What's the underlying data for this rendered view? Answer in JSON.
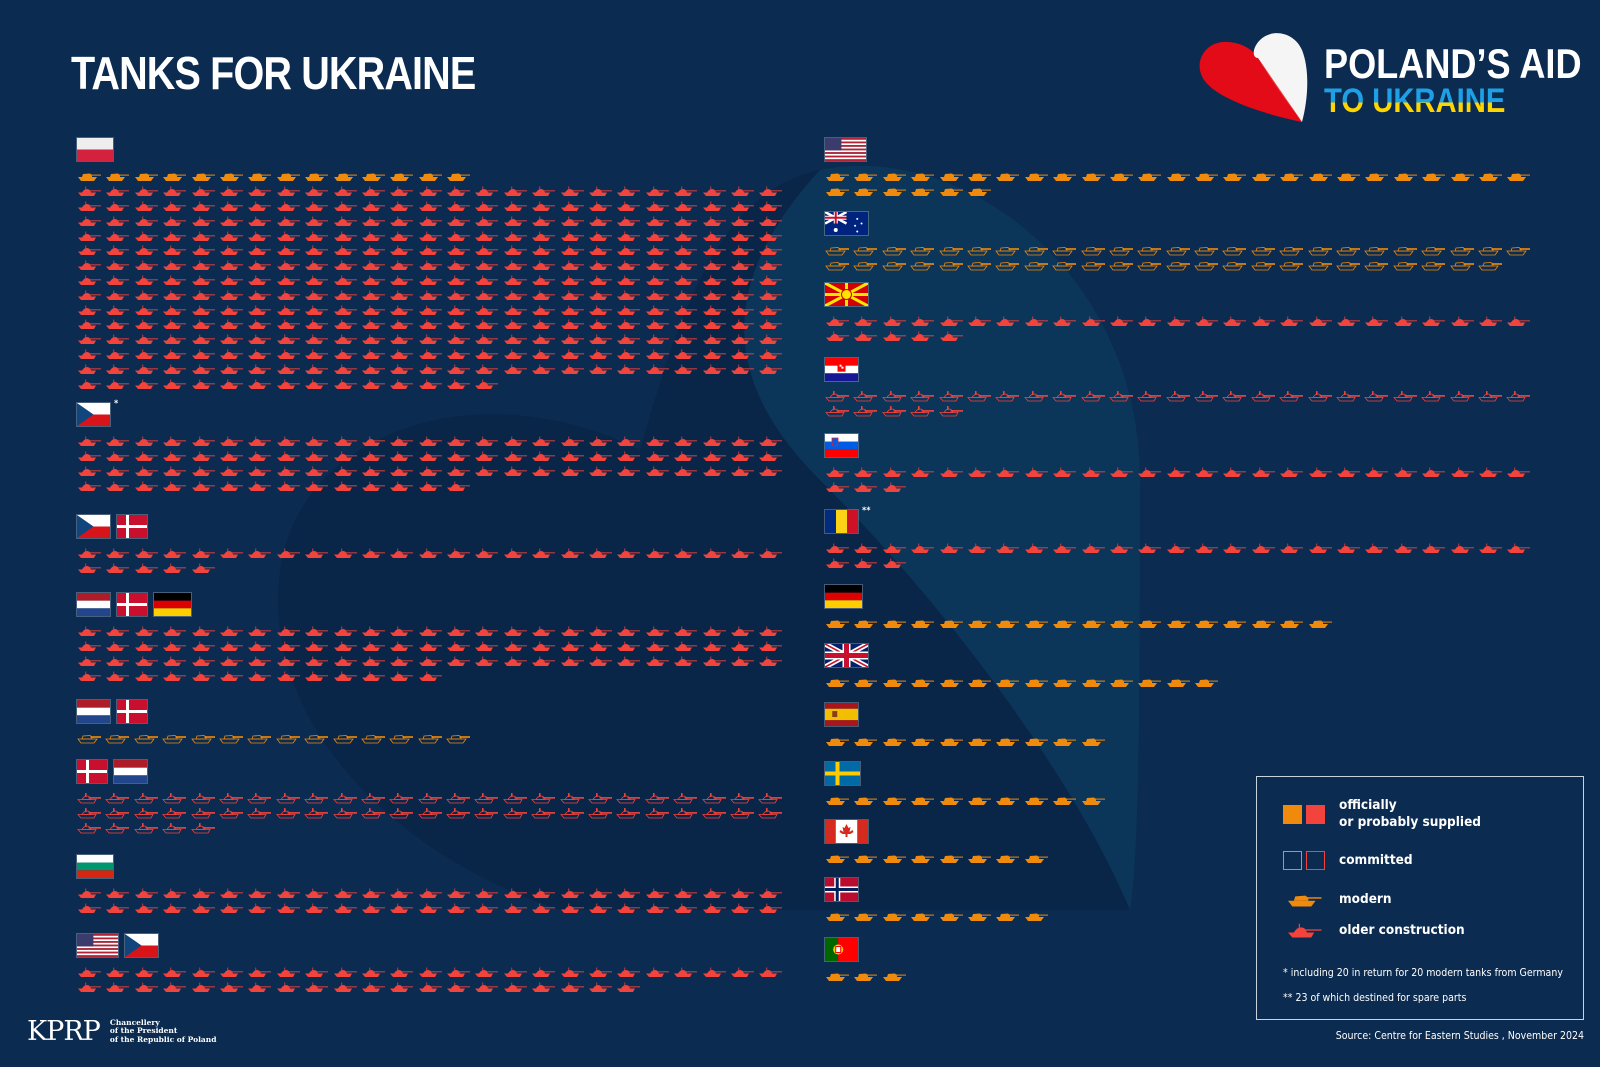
{
  "title": "TANKS FOR UKRAINE",
  "logo": {
    "line1": "POLAND’S AID",
    "line2": "TO UKRAINE"
  },
  "colors": {
    "background": "#0b2b50",
    "modern": "#f08a0c",
    "older": "#f2433d",
    "legend_border": "#c9d3de"
  },
  "groups_left": [
    {
      "flags": [
        "pl"
      ],
      "note": "",
      "tanks": [
        {
          "kind": "modern",
          "status": "supplied",
          "count": 14
        },
        {
          "kind": "older",
          "status": "supplied",
          "count": 340
        }
      ]
    },
    {
      "flags": [
        "cz"
      ],
      "note": "*",
      "tanks": [
        {
          "kind": "older",
          "status": "supplied",
          "count": 89
        }
      ]
    },
    {
      "flags": [
        "cz",
        "dk"
      ],
      "note": "",
      "tanks": [
        {
          "kind": "older",
          "status": "supplied",
          "count": 30
        }
      ]
    },
    {
      "flags": [
        "nl",
        "dk",
        "de"
      ],
      "note": "",
      "tanks": [
        {
          "kind": "older",
          "status": "supplied",
          "count": 88
        }
      ]
    },
    {
      "flags": [
        "nl",
        "dk"
      ],
      "note": "",
      "tanks": [
        {
          "kind": "modern",
          "status": "committed",
          "count": 14
        }
      ]
    },
    {
      "flags": [
        "dk",
        "nl"
      ],
      "note": "",
      "tanks": [
        {
          "kind": "older",
          "status": "committed",
          "count": 55
        }
      ]
    },
    {
      "flags": [
        "bg"
      ],
      "note": "",
      "tanks": [
        {
          "kind": "older",
          "status": "supplied",
          "count": 50
        }
      ]
    },
    {
      "flags": [
        "us",
        "cz"
      ],
      "note": "",
      "tanks": [
        {
          "kind": "older",
          "status": "supplied",
          "count": 45
        }
      ]
    }
  ],
  "groups_right": [
    {
      "flags": [
        "us"
      ],
      "note": "",
      "tanks": [
        {
          "kind": "modern",
          "status": "supplied",
          "count": 31
        }
      ]
    },
    {
      "flags": [
        "au"
      ],
      "note": "",
      "tanks": [
        {
          "kind": "modern",
          "status": "committed",
          "count": 49
        }
      ]
    },
    {
      "flags": [
        "mk"
      ],
      "note": "",
      "tanks": [
        {
          "kind": "older",
          "status": "supplied",
          "count": 30
        }
      ]
    },
    {
      "flags": [
        "hr"
      ],
      "note": "",
      "tanks": [
        {
          "kind": "older",
          "status": "committed",
          "count": 30
        }
      ]
    },
    {
      "flags": [
        "si"
      ],
      "note": "",
      "tanks": [
        {
          "kind": "older",
          "status": "supplied",
          "count": 28
        }
      ]
    },
    {
      "flags": [
        "ro"
      ],
      "note": "**",
      "tanks": [
        {
          "kind": "older",
          "status": "supplied",
          "count": 28
        }
      ]
    },
    {
      "flags": [
        "de"
      ],
      "note": "",
      "tanks": [
        {
          "kind": "modern",
          "status": "supplied",
          "count": 18
        }
      ]
    },
    {
      "flags": [
        "gb"
      ],
      "note": "",
      "tanks": [
        {
          "kind": "modern",
          "status": "supplied",
          "count": 14
        }
      ]
    },
    {
      "flags": [
        "es"
      ],
      "note": "",
      "tanks": [
        {
          "kind": "modern",
          "status": "supplied",
          "count": 10
        }
      ]
    },
    {
      "flags": [
        "se"
      ],
      "note": "",
      "tanks": [
        {
          "kind": "modern",
          "status": "supplied",
          "count": 10
        }
      ]
    },
    {
      "flags": [
        "ca"
      ],
      "note": "",
      "tanks": [
        {
          "kind": "modern",
          "status": "supplied",
          "count": 8
        }
      ]
    },
    {
      "flags": [
        "no"
      ],
      "note": "",
      "tanks": [
        {
          "kind": "modern",
          "status": "supplied",
          "count": 8
        }
      ]
    },
    {
      "flags": [
        "pt"
      ],
      "note": "",
      "tanks": [
        {
          "kind": "modern",
          "status": "supplied",
          "count": 3
        }
      ]
    }
  ],
  "legend": {
    "supplied_line1": "officially",
    "supplied_line2": "or probably supplied",
    "committed": "committed",
    "modern": "modern",
    "older": "older construction",
    "note1": "*   including 20 in return for 20 modern tanks from Germany",
    "note2": "**  23 of which destined for spare parts"
  },
  "footer": {
    "logo_text": "KPRP",
    "chancellery_1": "Chancellery",
    "chancellery_2": "of the President",
    "chancellery_3": "of the Republic of Poland",
    "source": "Source: Centre for Eastern Studies , November 2024"
  }
}
